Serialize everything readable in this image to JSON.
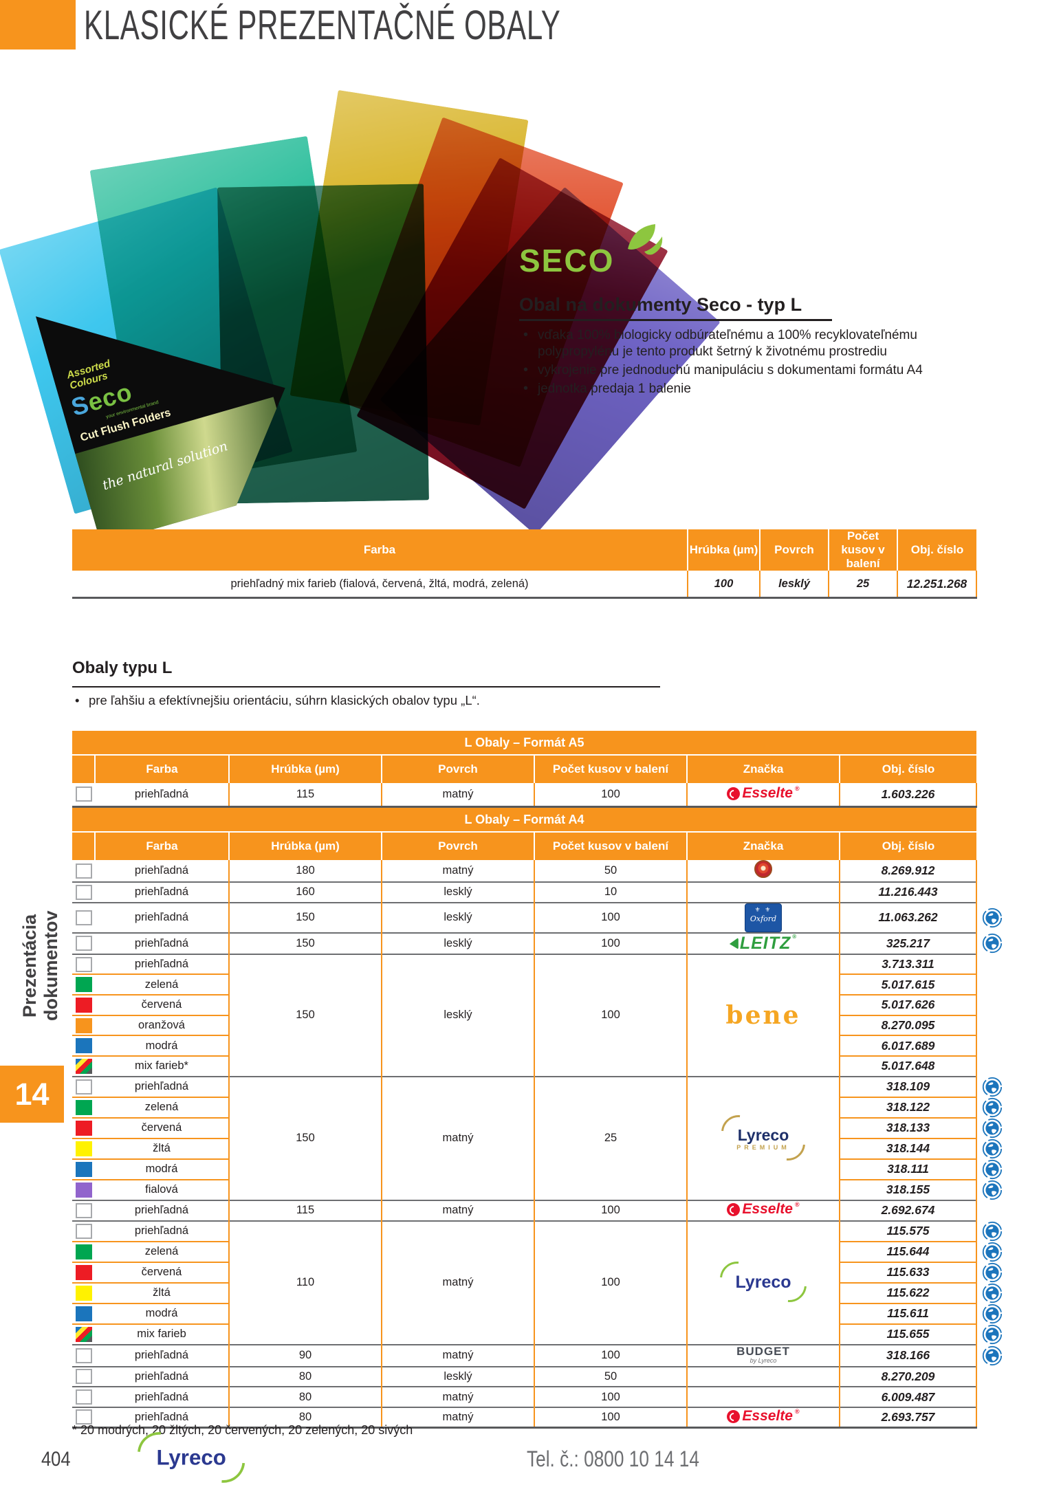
{
  "page": {
    "header_title": "KLASICKÉ PREZENTAČNÉ OBALY",
    "sidebar_label": "Prezentácia dokumentov",
    "sidebar_tab": "14",
    "page_number": "404",
    "phone": "Tel. č.: 0800 10 14 14",
    "footnote": "* 20 modrých, 20 žltých, 20 červených, 20 zelených, 20 sivých"
  },
  "product": {
    "brand_logo": "SECO",
    "title": "Obal na dokumenty Seco - typ L",
    "bullets": [
      "vďaka 100% biologicky odbúrateľnému a 100% recyklovateľnému polypropylénu je tento produkt šetrný k životnému prostrediu",
      "vykrojenie pre jednoduchú manipuláciu s dokumentami formátu A4",
      "jednotka predaja 1 balenie"
    ],
    "pack_label": {
      "top1": "Assorted",
      "top2": "Colours",
      "brand": "Seco",
      "tagline": "your environmental brand",
      "line": "Cut Flush Folders",
      "script": "the natural solution"
    }
  },
  "table1": {
    "headers": [
      "Farba",
      "Hrúbka (µm)",
      "Povrch",
      "Počet kusov v balení",
      "Obj. číslo"
    ],
    "row": {
      "farba": "priehľadný mix farieb (fialová, červená, žltá, modrá, zelená)",
      "hrubka": "100",
      "povrch": "lesklý",
      "pocet": "25",
      "obj": "12.251.268"
    }
  },
  "section": {
    "title": "Obaly typu L",
    "bullet": "pre ľahšiu a efektívnejšiu orientáciu, súhrn klasických obalov typu „L“."
  },
  "tableA5": {
    "title": "L Obaly – Formát A5",
    "headers": [
      "Farba",
      "Hrúbka (µm)",
      "Povrch",
      "Počet kusov v balení",
      "Značka",
      "Obj. číslo"
    ],
    "rows": [
      {
        "sep": "dark",
        "swatch": "white",
        "farba": "priehľadná",
        "span": 1,
        "hrubka": "115",
        "povrch": "matný",
        "pocet": "100",
        "znacka": "esselte",
        "obj": "1.603.226",
        "eco": false
      }
    ]
  },
  "tableA4": {
    "title": "L Obaly – Formát A4",
    "headers": [
      "Farba",
      "Hrúbka (µm)",
      "Povrch",
      "Počet kusov v balení",
      "Značka",
      "Obj. číslo"
    ],
    "rows": [
      {
        "sep": "dark",
        "swatch": "white",
        "farba": "priehľadná",
        "span": 1,
        "hrubka": "180",
        "povrch": "matný",
        "pocet": "50",
        "znacka": "dot",
        "obj": "8.269.912",
        "eco": false
      },
      {
        "sep": "dark",
        "swatch": "white",
        "farba": "priehľadná",
        "span": 1,
        "hrubka": "160",
        "povrch": "lesklý",
        "pocet": "10",
        "znacka": "",
        "obj": "11.216.443",
        "eco": false
      },
      {
        "sep": "dark",
        "swatch": "white",
        "farba": "priehľadná",
        "span": 1,
        "hrubka": "150",
        "povrch": "lesklý",
        "pocet": "100",
        "znacka": "oxford",
        "obj": "11.063.262",
        "eco": true
      },
      {
        "sep": "dark",
        "swatch": "white",
        "farba": "priehľadná",
        "span": 1,
        "hrubka": "150",
        "povrch": "lesklý",
        "pocet": "100",
        "znacka": "leitz",
        "obj": "325.217",
        "eco": true
      },
      {
        "sep": "dark",
        "swatch": "white",
        "farba": "priehľadná",
        "span": 6,
        "hrubka": "150",
        "povrch": "lesklý",
        "pocet": "100",
        "znacka": "bene",
        "obj": "3.713.311",
        "eco": false
      },
      {
        "sep": "orange",
        "swatch": "green",
        "farba": "zelená",
        "obj": "5.017.615",
        "eco": false
      },
      {
        "sep": "orange",
        "swatch": "red",
        "farba": "červená",
        "obj": "5.017.626",
        "eco": false
      },
      {
        "sep": "orange",
        "swatch": "orange",
        "farba": "oranžová",
        "obj": "8.270.095",
        "eco": false
      },
      {
        "sep": "orange",
        "swatch": "blue",
        "farba": "modrá",
        "obj": "6.017.689",
        "eco": false
      },
      {
        "sep": "orange",
        "swatch": "mix",
        "farba": "mix farieb*",
        "obj": "5.017.648",
        "eco": false
      },
      {
        "sep": "dark",
        "swatch": "white",
        "farba": "priehľadná",
        "span": 6,
        "hrubka": "150",
        "povrch": "matný",
        "pocet": "25",
        "znacka": "lyreco-premium",
        "obj": "318.109",
        "eco": true
      },
      {
        "sep": "orange",
        "swatch": "green",
        "farba": "zelená",
        "obj": "318.122",
        "eco": true
      },
      {
        "sep": "orange",
        "swatch": "red",
        "farba": "červená",
        "obj": "318.133",
        "eco": true
      },
      {
        "sep": "orange",
        "swatch": "yellow",
        "farba": "žltá",
        "obj": "318.144",
        "eco": true
      },
      {
        "sep": "orange",
        "swatch": "blue",
        "farba": "modrá",
        "obj": "318.111",
        "eco": true
      },
      {
        "sep": "orange",
        "swatch": "purple",
        "farba": "fialová",
        "obj": "318.155",
        "eco": true
      },
      {
        "sep": "dark",
        "swatch": "white",
        "farba": "priehľadná",
        "span": 1,
        "hrubka": "115",
        "povrch": "matný",
        "pocet": "100",
        "znacka": "esselte",
        "obj": "2.692.674",
        "eco": false
      },
      {
        "sep": "dark",
        "swatch": "white",
        "farba": "priehľadná",
        "span": 6,
        "hrubka": "110",
        "povrch": "matný",
        "pocet": "100",
        "znacka": "lyreco",
        "obj": "115.575",
        "eco": true
      },
      {
        "sep": "orange",
        "swatch": "green",
        "farba": "zelená",
        "obj": "115.644",
        "eco": true
      },
      {
        "sep": "orange",
        "swatch": "red",
        "farba": "červená",
        "obj": "115.633",
        "eco": true
      },
      {
        "sep": "orange",
        "swatch": "yellow",
        "farba": "žltá",
        "obj": "115.622",
        "eco": true
      },
      {
        "sep": "orange",
        "swatch": "blue",
        "farba": "modrá",
        "obj": "115.611",
        "eco": true
      },
      {
        "sep": "orange",
        "swatch": "mix",
        "farba": "mix farieb",
        "obj": "115.655",
        "eco": true
      },
      {
        "sep": "dark",
        "swatch": "white",
        "farba": "priehľadná",
        "span": 1,
        "hrubka": "90",
        "povrch": "matný",
        "pocet": "100",
        "znacka": "budget",
        "obj": "318.166",
        "eco": true
      },
      {
        "sep": "dark",
        "swatch": "white",
        "farba": "priehľadná",
        "span": 1,
        "hrubka": "80",
        "povrch": "lesklý",
        "pocet": "50",
        "znacka": "",
        "obj": "8.270.209",
        "eco": false
      },
      {
        "sep": "dark",
        "swatch": "white",
        "farba": "priehľadná",
        "span": 1,
        "hrubka": "80",
        "povrch": "matný",
        "pocet": "100",
        "znacka": "",
        "obj": "6.009.487",
        "eco": false
      },
      {
        "sep": "dark",
        "swatch": "white",
        "farba": "priehľadná",
        "span": 1,
        "hrubka": "80",
        "povrch": "matný",
        "pocet": "100",
        "znacka": "esselte",
        "obj": "2.693.757",
        "eco": false
      }
    ]
  },
  "logos": {
    "esselte": "Esselte",
    "oxford": "Oxford",
    "leitz": "LEITZ",
    "bene": "bene",
    "lyreco": "Lyreco",
    "premium": "PREMIUM",
    "budget": "BUDGET",
    "budget_sub": "by Lyreco"
  },
  "colors": {
    "accent_orange": "#F7941D",
    "table_dark_border": "#58595B",
    "eco_blue": "#1C75BC",
    "esselte_red": "#E8112D",
    "leitz_green": "#2f9e3f",
    "seco_green": "#8DC63F",
    "lyreco_blue": "#2B3990",
    "swatch_green": "#00A651",
    "swatch_red": "#ED1C24",
    "swatch_blue": "#1B75BC",
    "swatch_yellow": "#FFF200",
    "swatch_purple": "#9164CC"
  }
}
